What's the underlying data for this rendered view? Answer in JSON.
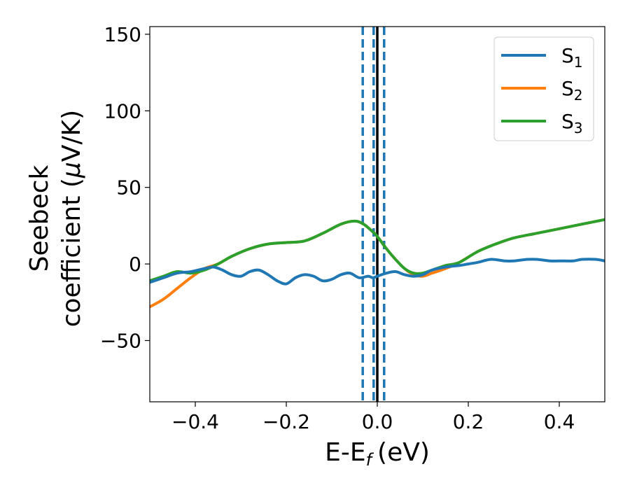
{
  "chart_data": {
    "type": "line",
    "xlabel": "E-E",
    "xlabel_subscript": "f",
    "xlabel_unit": "(eV)",
    "ylabel_line1": "Seebeck",
    "ylabel_line2_prefix": "coefficient  (",
    "ylabel_line2_mu": "μ",
    "ylabel_line2_suffix": "V/K)",
    "xlim": [
      -0.5,
      0.5
    ],
    "ylim": [
      -90,
      155
    ],
    "x_ticks": [
      -0.4,
      -0.2,
      0.0,
      0.2,
      0.4
    ],
    "x_tick_labels": [
      "−0.4",
      "−0.2",
      "0.0",
      "0.2",
      "0.4"
    ],
    "y_ticks": [
      -50,
      0,
      50,
      100,
      150
    ],
    "y_tick_labels": [
      "−50",
      "0",
      "50",
      "100",
      "150"
    ],
    "grid": false,
    "legend_position": "top-right",
    "vertical_lines": [
      {
        "x": 0.0,
        "color": "#000000",
        "style": "solid"
      },
      {
        "x": -0.032,
        "color": "#1f77b4",
        "style": "dashed"
      },
      {
        "x": -0.008,
        "color": "#1f77b4",
        "style": "dashed"
      },
      {
        "x": 0.015,
        "color": "#1f77b4",
        "style": "dashed"
      }
    ],
    "series": [
      {
        "name": "S",
        "subscript": "1",
        "color": "#1f77b4",
        "x": [
          -0.5,
          -0.47,
          -0.44,
          -0.41,
          -0.38,
          -0.36,
          -0.34,
          -0.32,
          -0.3,
          -0.28,
          -0.26,
          -0.24,
          -0.22,
          -0.2,
          -0.18,
          -0.16,
          -0.14,
          -0.12,
          -0.1,
          -0.08,
          -0.06,
          -0.04,
          -0.02,
          -0.01,
          0.0,
          0.02,
          0.04,
          0.06,
          0.08,
          0.1,
          0.12,
          0.15,
          0.18,
          0.2,
          0.22,
          0.25,
          0.28,
          0.3,
          0.33,
          0.35,
          0.38,
          0.4,
          0.43,
          0.45,
          0.48,
          0.5
        ],
        "y": [
          -12,
          -9,
          -6,
          -5,
          -3,
          -2,
          -4,
          -7,
          -8,
          -5,
          -4,
          -7,
          -11,
          -13,
          -9,
          -7,
          -8,
          -11,
          -10,
          -7,
          -6,
          -9,
          -8,
          -9,
          -8,
          -6,
          -5,
          -7,
          -8,
          -7,
          -4,
          -2,
          -1,
          0,
          1,
          3,
          2,
          2,
          3,
          3,
          2,
          2,
          2,
          3,
          3,
          2
        ]
      },
      {
        "name": "S",
        "subscript": "2",
        "color": "#ff7f0e",
        "x": [
          -0.5,
          -0.47,
          -0.44,
          -0.41,
          -0.38,
          -0.35,
          -0.32,
          -0.28,
          -0.24,
          -0.2,
          -0.16,
          -0.12,
          -0.08,
          -0.05,
          -0.03,
          -0.01,
          0.0,
          0.02,
          0.04,
          0.06,
          0.08,
          0.1,
          0.12,
          0.15,
          0.18,
          0.22,
          0.26,
          0.3,
          0.35,
          0.4,
          0.45,
          0.5
        ],
        "y": [
          -28,
          -23,
          -16,
          -9,
          -3,
          0,
          5,
          10,
          13,
          14,
          15,
          20,
          26,
          28,
          26,
          21,
          18,
          10,
          3,
          -3,
          -7,
          -8,
          -6,
          -3,
          1,
          8,
          13,
          17,
          20,
          23,
          26,
          29
        ]
      },
      {
        "name": "S",
        "subscript": "3",
        "color": "#2ca02c",
        "x": [
          -0.5,
          -0.47,
          -0.44,
          -0.41,
          -0.38,
          -0.35,
          -0.32,
          -0.28,
          -0.24,
          -0.2,
          -0.16,
          -0.12,
          -0.08,
          -0.05,
          -0.03,
          -0.01,
          0.0,
          0.02,
          0.04,
          0.06,
          0.08,
          0.1,
          0.12,
          0.15,
          0.18,
          0.22,
          0.26,
          0.3,
          0.35,
          0.4,
          0.45,
          0.5
        ],
        "y": [
          -11,
          -8,
          -5,
          -6,
          -4,
          0,
          5,
          10,
          13,
          14,
          15,
          20,
          26,
          28,
          26,
          21,
          18,
          10,
          3,
          -3,
          -6,
          -6,
          -4,
          -1,
          1,
          8,
          13,
          17,
          20,
          23,
          26,
          29
        ]
      }
    ]
  }
}
